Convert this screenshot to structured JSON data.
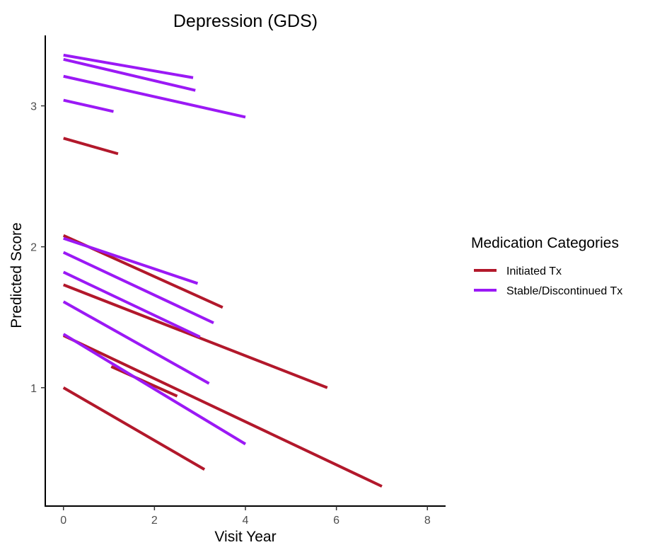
{
  "chart_data": {
    "type": "line",
    "title": "Depression (GDS)",
    "xlabel": "Visit Year",
    "ylabel": "Predicted Score",
    "xlim": [
      -0.4,
      8.4
    ],
    "ylim": [
      0.16,
      3.5
    ],
    "xticks": [
      0,
      2,
      4,
      6,
      8
    ],
    "yticks": [
      1,
      2,
      3
    ],
    "grid": false,
    "legend": {
      "title": "Medication Categories",
      "position": "right",
      "entries": [
        {
          "name": "Initiated Tx",
          "color": "#b2182b"
        },
        {
          "name": "Stable/Discontinued Tx",
          "color": "#9b19f5"
        }
      ]
    },
    "series": [
      {
        "name": "Initiated Tx",
        "color": "#b2182b",
        "segments": [
          {
            "x": [
              0,
              1.2
            ],
            "y": [
              2.77,
              2.66
            ]
          },
          {
            "x": [
              0,
              3.5
            ],
            "y": [
              2.08,
              1.57
            ]
          },
          {
            "x": [
              0,
              5.8
            ],
            "y": [
              1.73,
              1.0
            ]
          },
          {
            "x": [
              0,
              7.0
            ],
            "y": [
              1.37,
              0.3
            ]
          },
          {
            "x": [
              1.05,
              2.5
            ],
            "y": [
              1.15,
              0.94
            ]
          },
          {
            "x": [
              0,
              3.1
            ],
            "y": [
              1.0,
              0.42
            ]
          }
        ]
      },
      {
        "name": "Stable/Discontinued Tx",
        "color": "#9b19f5",
        "segments": [
          {
            "x": [
              0,
              2.85
            ],
            "y": [
              3.36,
              3.2
            ]
          },
          {
            "x": [
              0,
              2.9
            ],
            "y": [
              3.33,
              3.11
            ]
          },
          {
            "x": [
              0,
              4.0
            ],
            "y": [
              3.21,
              2.92
            ]
          },
          {
            "x": [
              0,
              1.1
            ],
            "y": [
              3.04,
              2.96
            ]
          },
          {
            "x": [
              0,
              2.95
            ],
            "y": [
              2.06,
              1.74
            ]
          },
          {
            "x": [
              0,
              3.3
            ],
            "y": [
              1.96,
              1.46
            ]
          },
          {
            "x": [
              0,
              3.0
            ],
            "y": [
              1.82,
              1.36
            ]
          },
          {
            "x": [
              0,
              3.2
            ],
            "y": [
              1.61,
              1.03
            ]
          },
          {
            "x": [
              0,
              4.0
            ],
            "y": [
              1.38,
              0.6
            ]
          }
        ]
      }
    ]
  }
}
